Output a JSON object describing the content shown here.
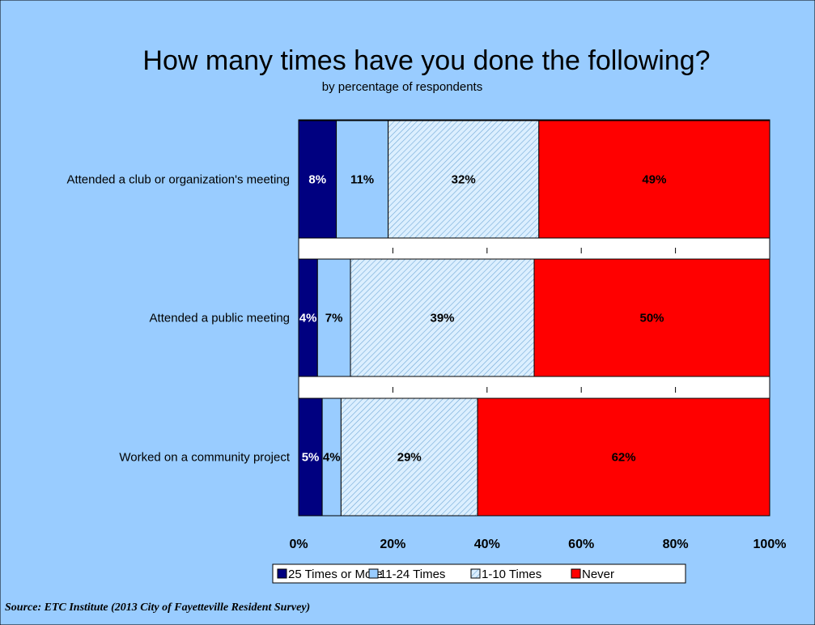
{
  "chart_data": {
    "type": "bar",
    "orientation": "horizontal",
    "stacked": true,
    "title": "How many times have you done the following?",
    "subtitle": "by percentage of respondents",
    "categories": [
      "Attended a club or organization's meeting",
      "Attended a public meeting",
      "Worked on a community project"
    ],
    "series": [
      {
        "name": "25 Times or More",
        "values": [
          8,
          4,
          5
        ],
        "labels": [
          "8%",
          "4%",
          "5%"
        ],
        "color": "#000080",
        "label_color": "#ffffff",
        "pattern": "solid"
      },
      {
        "name": "11-24 Times",
        "values": [
          11,
          7,
          4
        ],
        "labels": [
          "11%",
          "7%",
          "4%"
        ],
        "color": "#99ccff",
        "label_color": "#000000",
        "pattern": "solid"
      },
      {
        "name": "1-10 Times",
        "values": [
          32,
          39,
          29
        ],
        "labels": [
          "32%",
          "39%",
          "29%"
        ],
        "color": "#cce6ff",
        "label_color": "#000000",
        "pattern": "hatched"
      },
      {
        "name": "Never",
        "values": [
          49,
          50,
          62
        ],
        "labels": [
          "49%",
          "50%",
          "62%"
        ],
        "color": "#ff0000",
        "label_color": "#000000",
        "pattern": "solid"
      }
    ],
    "xlim": [
      0,
      100
    ],
    "xticks": [
      "0%",
      "20%",
      "40%",
      "60%",
      "80%",
      "100%"
    ],
    "grid": false,
    "legend_position": "bottom",
    "background_color": "#99ccff",
    "plot_background_color": "#ffffff"
  },
  "source": "Source:  ETC Institute (2013 City of Fayetteville Resident Survey)"
}
